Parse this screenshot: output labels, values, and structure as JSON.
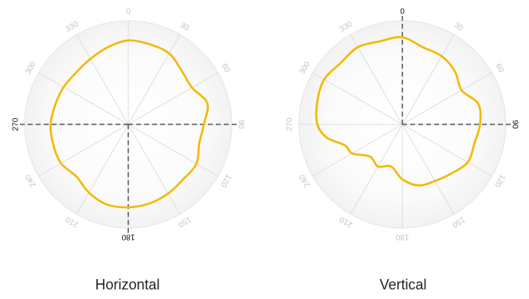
{
  "colors": {
    "trace": "#F5B800",
    "dish_outer": "#F2F2F2",
    "dish_inner": "#FFFFFF",
    "spoke": "#DDDDDD",
    "axis": "#555555",
    "label_dim": "#C4C4C4",
    "label_bold": "#111111"
  },
  "chart_data": [
    {
      "type": "polar-line",
      "title": "Horizontal",
      "angle_labels": [
        "0",
        "30",
        "60",
        "90",
        "120",
        "150",
        "180",
        "210",
        "240",
        "270",
        "300",
        "330"
      ],
      "highlighted_angle_labels": [
        "180",
        "270"
      ],
      "dashed_axes_deg": [
        90,
        180,
        270
      ],
      "rlim": [
        0,
        1
      ],
      "series": [
        {
          "theta_deg": [
            0,
            15,
            30,
            45,
            60,
            75,
            90,
            105,
            120,
            135,
            150,
            165,
            180,
            195,
            210,
            225,
            240,
            255,
            270,
            285,
            300,
            315,
            330,
            345
          ],
          "r": [
            0.81,
            0.8,
            0.79,
            0.73,
            0.71,
            0.79,
            0.73,
            0.71,
            0.76,
            0.75,
            0.77,
            0.79,
            0.8,
            0.8,
            0.76,
            0.71,
            0.75,
            0.75,
            0.75,
            0.73,
            0.72,
            0.71,
            0.73,
            0.77
          ]
        }
      ]
    },
    {
      "type": "polar-line",
      "title": "Vertical",
      "angle_labels": [
        "0",
        "30",
        "60",
        "90",
        "120",
        "150",
        "180",
        "210",
        "240",
        "270",
        "300",
        "330"
      ],
      "highlighted_angle_labels": [
        "0",
        "90"
      ],
      "dashed_axes_deg": [
        0,
        90
      ],
      "rlim": [
        0,
        1
      ],
      "series": [
        {
          "theta_deg": [
            0,
            15,
            30,
            45,
            60,
            75,
            90,
            105,
            120,
            135,
            150,
            165,
            180,
            195,
            210,
            225,
            240,
            250,
            260,
            270,
            285,
            300,
            315,
            330,
            345
          ],
          "r": [
            0.84,
            0.77,
            0.76,
            0.72,
            0.66,
            0.76,
            0.75,
            0.72,
            0.73,
            0.67,
            0.63,
            0.61,
            0.53,
            0.42,
            0.47,
            0.44,
            0.56,
            0.59,
            0.74,
            0.82,
            0.85,
            0.87,
            0.84,
            0.86,
            0.83
          ]
        }
      ]
    }
  ]
}
